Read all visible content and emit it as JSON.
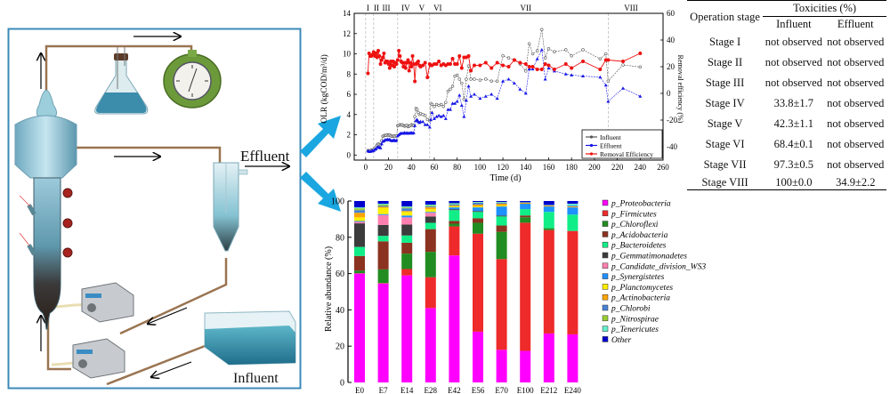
{
  "diagram": {
    "effluent_label": "Effluent",
    "influent_label": "Influent",
    "components": [
      "reactor-column",
      "gas-washing-flask",
      "gas-meter",
      "settling-tank",
      "peristaltic-pump-recycle",
      "peristaltic-pump-feed",
      "influent-tank"
    ]
  },
  "line_chart": {
    "chart_data": {
      "type": "line",
      "xlabel": "Time (d)",
      "ylabel": "OLR (kgCOD/m³/d)",
      "ylabel_right": "Removal efficiency (%)",
      "xlim": [
        -10,
        260
      ],
      "ylim": [
        -0.5,
        14
      ],
      "ylim_right": [
        -50,
        60
      ],
      "xticks": [
        0,
        20,
        40,
        60,
        80,
        100,
        120,
        140,
        160,
        180,
        200,
        220,
        240,
        260
      ],
      "yticks": [
        0,
        2,
        4,
        6,
        8,
        10,
        12,
        14
      ],
      "yticks_right": [
        -40,
        -20,
        0,
        20,
        40,
        60
      ],
      "stages": [
        {
          "label": "I",
          "start": 0
        },
        {
          "label": "II",
          "start": 7
        },
        {
          "label": "III",
          "start": 14
        },
        {
          "label": "IV",
          "start": 28
        },
        {
          "label": "V",
          "start": 42
        },
        {
          "label": "VI",
          "start": 56
        },
        {
          "label": "VII",
          "start": 70
        },
        {
          "label": "VIII",
          "start": 212
        }
      ],
      "stage_boundaries": [
        0,
        7,
        28,
        56,
        212
      ],
      "legend": [
        "Influent",
        "Effluent",
        "Removal Efficiency"
      ],
      "legend_position": "bottom-right",
      "series": [
        {
          "name": "Influent",
          "color": "#555555",
          "axis": "left",
          "x": [
            2,
            3,
            4,
            5,
            6,
            7,
            8,
            9,
            10,
            11,
            12,
            13,
            14,
            15,
            16,
            17,
            18,
            19,
            20,
            21,
            22,
            23,
            24,
            25,
            26,
            27,
            28,
            29,
            30,
            31,
            32,
            33,
            34,
            35,
            36,
            37,
            38,
            39,
            40,
            41,
            42,
            43,
            44,
            45,
            46,
            47,
            48,
            50,
            52,
            54,
            56,
            57,
            58,
            60,
            62,
            64,
            66,
            68,
            70,
            72,
            74,
            76,
            78,
            80,
            82,
            84,
            86,
            88,
            90,
            92,
            95,
            100,
            105,
            110,
            115,
            120,
            125,
            130,
            135,
            140,
            143,
            146,
            150,
            154,
            157,
            160,
            165,
            175,
            180,
            190,
            205,
            210,
            212,
            225,
            240
          ],
          "y": [
            0.45,
            0.4,
            0.45,
            0.5,
            0.5,
            0.55,
            0.7,
            0.8,
            1.0,
            1.1,
            1.05,
            1.0,
            1.4,
            1.85,
            1.9,
            1.95,
            1.95,
            2.0,
            1.95,
            2.0,
            1.9,
            1.85,
            1.85,
            1.9,
            1.85,
            1.9,
            2.9,
            2.95,
            3.0,
            2.95,
            3.0,
            2.9,
            2.85,
            2.9,
            2.95,
            2.8,
            2.85,
            2.9,
            3.0,
            2.95,
            2.9,
            3.8,
            4.6,
            4.5,
            4.2,
            4.0,
            4.1,
            4.0,
            3.9,
            3.5,
            3.4,
            5.1,
            5.0,
            4.8,
            5.0,
            4.9,
            5.0,
            4.8,
            5.2,
            6.3,
            6.5,
            6.8,
            7.8,
            7.9,
            7.5,
            7.1,
            5.5,
            7.5,
            8.8,
            7.5,
            7.5,
            7.4,
            7.5,
            7.3,
            7.3,
            9.8,
            9.6,
            9.4,
            9.0,
            8.3,
            11.0,
            10.0,
            10.3,
            12.4,
            9.6,
            10.5,
            10.2,
            10.4,
            9.8,
            10.4,
            9.5,
            10.0,
            7.3,
            8.9,
            8.7
          ]
        },
        {
          "name": "Effluent",
          "color": "#1515e6",
          "axis": "left",
          "x": [
            2,
            3,
            4,
            5,
            6,
            7,
            8,
            9,
            10,
            11,
            12,
            13,
            14,
            15,
            16,
            17,
            18,
            19,
            20,
            21,
            22,
            23,
            24,
            25,
            26,
            27,
            28,
            29,
            30,
            31,
            32,
            33,
            34,
            35,
            36,
            37,
            38,
            39,
            40,
            41,
            42,
            43,
            44,
            45,
            46,
            47,
            48,
            50,
            52,
            54,
            56,
            57,
            58,
            60,
            62,
            64,
            66,
            68,
            70,
            72,
            74,
            76,
            78,
            80,
            82,
            84,
            86,
            88,
            90,
            92,
            95,
            100,
            105,
            110,
            115,
            120,
            125,
            130,
            135,
            140,
            143,
            146,
            150,
            154,
            157,
            160,
            165,
            175,
            180,
            190,
            205,
            210,
            212,
            225,
            240
          ],
          "y": [
            0.4,
            0.35,
            0.35,
            0.4,
            0.4,
            0.45,
            0.55,
            0.6,
            0.75,
            0.8,
            0.75,
            0.7,
            1.1,
            1.35,
            1.4,
            1.5,
            1.5,
            1.55,
            1.5,
            1.55,
            1.45,
            1.4,
            1.45,
            1.5,
            1.4,
            1.45,
            1.9,
            2.0,
            2.1,
            2.15,
            2.15,
            2.15,
            2.2,
            2.15,
            2.2,
            2.15,
            2.15,
            2.2,
            2.2,
            2.15,
            2.2,
            2.9,
            3.4,
            3.5,
            3.3,
            3.2,
            3.3,
            3.3,
            3.0,
            3.0,
            2.75,
            3.5,
            4.2,
            3.6,
            3.8,
            3.9,
            3.8,
            3.9,
            3.6,
            4.5,
            4.5,
            5.1,
            5.1,
            5.3,
            5.9,
            4.9,
            3.8,
            5.4,
            6.8,
            5.8,
            6.0,
            5.6,
            5.8,
            6.0,
            5.6,
            7.3,
            7.5,
            7.1,
            6.5,
            6.1,
            8.5,
            8.5,
            9.5,
            10.4,
            7.5,
            8.6,
            8.3,
            8.0,
            7.9,
            7.8,
            7.7,
            6.9,
            5.3,
            6.6,
            5.8
          ]
        },
        {
          "name": "Removal Efficiency",
          "color": "#ee1111",
          "axis": "right",
          "x": [
            2,
            3,
            4,
            5,
            6,
            7,
            8,
            9,
            10,
            11,
            12,
            13,
            14,
            15,
            16,
            17,
            18,
            19,
            20,
            21,
            22,
            23,
            24,
            25,
            26,
            27,
            28,
            29,
            30,
            31,
            32,
            33,
            34,
            35,
            36,
            37,
            38,
            39,
            40,
            41,
            42,
            43,
            44,
            45,
            46,
            47,
            48,
            50,
            52,
            54,
            56,
            57,
            58,
            60,
            62,
            64,
            66,
            68,
            70,
            72,
            74,
            76,
            78,
            80,
            82,
            84,
            86,
            88,
            90,
            92,
            95,
            100,
            105,
            110,
            115,
            120,
            125,
            130,
            135,
            140,
            143,
            146,
            150,
            154,
            157,
            160,
            165,
            175,
            180,
            190,
            205,
            210,
            212,
            225,
            240
          ],
          "y": [
            15,
            30,
            28,
            28,
            29,
            31,
            28,
            30,
            27,
            32,
            28,
            22,
            25,
            27,
            30,
            23,
            24,
            24,
            22,
            19,
            24,
            21,
            24,
            20,
            23,
            22,
            25,
            32,
            28,
            24,
            23,
            20,
            23,
            19,
            23,
            25,
            17,
            23,
            20,
            28,
            22,
            9,
            22,
            23,
            24,
            21,
            20,
            21,
            23,
            12,
            22,
            21,
            21,
            22,
            22,
            24,
            21,
            22,
            21,
            22,
            22,
            26,
            22,
            22,
            28,
            19,
            27,
            27,
            28,
            17,
            21,
            21,
            23,
            19,
            23,
            21,
            20,
            25,
            23,
            22,
            20,
            20,
            18,
            18,
            22,
            21,
            18,
            22,
            19,
            24,
            18,
            25,
            25,
            24,
            30
          ]
        }
      ]
    }
  },
  "table": {
    "headers": {
      "stage": "Operation stage",
      "toxicities": "Toxicities (%)",
      "influent": "Influent",
      "effluent": "Effluent"
    },
    "rows": [
      {
        "stage": "Stage I",
        "influent": "not observed",
        "effluent": "not observed"
      },
      {
        "stage": "Stage II",
        "influent": "not observed",
        "effluent": "not observed"
      },
      {
        "stage": "Stage III",
        "influent": "not observed",
        "effluent": "not observed"
      },
      {
        "stage": "Stage IV",
        "influent": "33.8±1.7",
        "effluent": "not observed"
      },
      {
        "stage": "Stage V",
        "influent": "42.3±1.1",
        "effluent": "not observed"
      },
      {
        "stage": "Stage VI",
        "influent": "68.4±0.1",
        "effluent": "not observed"
      },
      {
        "stage": "Stage VII",
        "influent": "97.3±0.5",
        "effluent": "not observed"
      },
      {
        "stage": "Stage VIII",
        "influent": "100±0.0",
        "effluent": "34.9±2.2"
      }
    ]
  },
  "bar_chart": {
    "chart_data": {
      "type": "bar",
      "stacked": true,
      "ylabel": "Relative abundance (%)",
      "xlabel": "",
      "ylim": [
        0,
        100
      ],
      "yticks": [
        0,
        20,
        40,
        60,
        80,
        100
      ],
      "categories": [
        "E0",
        "E7",
        "E14",
        "E28",
        "E42",
        "E56",
        "E70",
        "E100",
        "E212",
        "E240"
      ],
      "legend_position": "right",
      "series": [
        {
          "name": "p_Proteobacteria",
          "color": "#ff00ff",
          "values": [
            60,
            54.5,
            59,
            41,
            70,
            28,
            18,
            17.5,
            27,
            26.5
          ]
        },
        {
          "name": "p_Firmicutes",
          "color": "#ee2a2a",
          "values": [
            0.2,
            0.3,
            3.5,
            17,
            16,
            54,
            50,
            71,
            57,
            57
          ]
        },
        {
          "name": "p_Chloroflexi",
          "color": "#218c21",
          "values": [
            1.5,
            7.5,
            8.5,
            14,
            1.5,
            6,
            15,
            3,
            1,
            0
          ]
        },
        {
          "name": "p_Acidobacteria",
          "color": "#8b3320",
          "values": [
            8,
            15.5,
            6,
            12.5,
            1.5,
            2.5,
            3.5,
            1,
            0,
            0
          ]
        },
        {
          "name": "p_Bacteroidetes",
          "color": "#11ee88",
          "values": [
            5,
            3,
            4,
            3.5,
            6,
            3.5,
            5,
            3.5,
            9,
            9
          ]
        },
        {
          "name": "p_Gemmatimonadetes",
          "color": "#3c3c3c",
          "values": [
            13,
            6,
            6,
            3.5,
            0.5,
            0.5,
            0.5,
            0,
            0,
            0
          ]
        },
        {
          "name": "p_Candidate_division_WS3",
          "color": "#ff80b0",
          "values": [
            0.8,
            5.5,
            4,
            2,
            0,
            0,
            0,
            0,
            0,
            0
          ]
        },
        {
          "name": "p_Synergistetes",
          "color": "#1e90ff",
          "values": [
            0.5,
            0.5,
            1,
            0.5,
            1,
            2,
            5,
            3,
            3,
            4
          ]
        },
        {
          "name": "p_Planctomycetes",
          "color": "#ffee00",
          "values": [
            2,
            3.5,
            2,
            1.5,
            0.5,
            0.5,
            0.5,
            0,
            0,
            0
          ]
        },
        {
          "name": "p_Actinobacteria",
          "color": "#ffa500",
          "values": [
            2.5,
            0.5,
            0.5,
            1,
            0.5,
            1,
            1,
            0.5,
            0.5,
            0.5
          ]
        },
        {
          "name": "p_Chlorobi",
          "color": "#4682d4",
          "values": [
            1.5,
            0.5,
            1.5,
            0.5,
            0.5,
            1,
            0.5,
            0.5,
            0.5,
            0.5
          ]
        },
        {
          "name": "p_Nitrospirae",
          "color": "#99cc33",
          "values": [
            1,
            0.7,
            0.5,
            0.5,
            0.3,
            0.2,
            0.2,
            0,
            0,
            0
          ]
        },
        {
          "name": "p_Tenericutes",
          "color": "#66eecc",
          "values": [
            0.5,
            0.5,
            0.5,
            0.5,
            0.5,
            0.3,
            0.3,
            0,
            0,
            1
          ]
        },
        {
          "name": "Other",
          "color": "#0000cc",
          "values": [
            3.5,
            1.5,
            3,
            2,
            1.2,
            0.5,
            0.5,
            0.5,
            2,
            1.5
          ]
        }
      ]
    }
  },
  "flow_arrows": {
    "color": "#1aa6e0"
  }
}
